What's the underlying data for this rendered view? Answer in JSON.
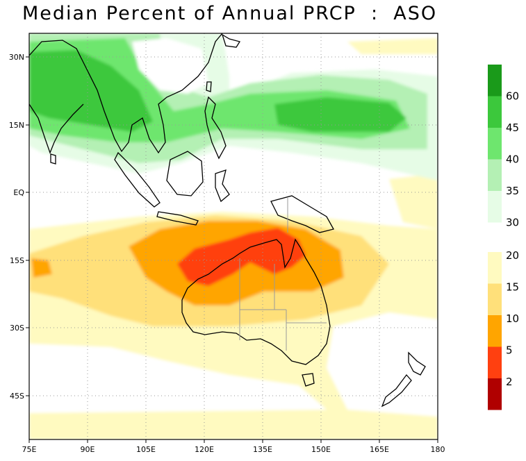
{
  "title": "Median Percent of Annual PRCP  :  ASO",
  "axes": {
    "lon_ticks": [
      "75E",
      "90E",
      "105E",
      "120E",
      "135E",
      "150E",
      "165E",
      "180"
    ],
    "lat_ticks": [
      "30N",
      "15N",
      "EQ",
      "15S",
      "30S",
      "45S"
    ]
  },
  "colorbar": {
    "upper_labels": [
      "60",
      "45",
      "40",
      "35",
      "30"
    ],
    "lower_labels": [
      "20",
      "15",
      "10",
      "5",
      "2"
    ],
    "upper_colors": [
      "#1a9a1a",
      "#3cc83c",
      "#6ee66e",
      "#b4f0b4",
      "#e6fce6"
    ],
    "lower_colors": [
      "#fffac0",
      "#ffe07a",
      "#ffa500",
      "#ff4010",
      "#b00000"
    ]
  },
  "colors": {
    "ocean": "#ffffff",
    "coast": "#000000",
    "border": "#9a9a9a",
    "grid": "#999999"
  }
}
